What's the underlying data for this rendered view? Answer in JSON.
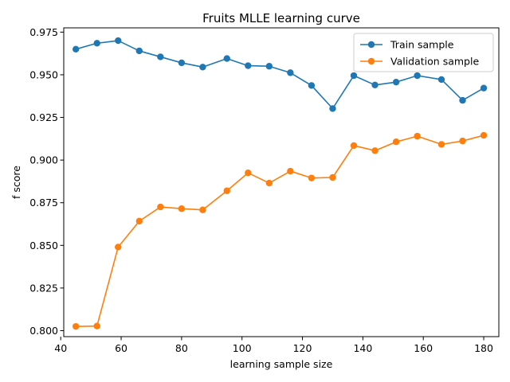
{
  "chart_data": {
    "type": "line",
    "title": "Fruits MLLE learning curve",
    "xlabel": "learning sample size",
    "ylabel": "f score",
    "xlim": [
      41,
      185
    ],
    "ylim": [
      0.7965,
      0.9775
    ],
    "xticks": [
      40,
      60,
      80,
      100,
      120,
      140,
      160,
      180
    ],
    "yticks": [
      0.8,
      0.825,
      0.85,
      0.875,
      0.9,
      0.925,
      0.95,
      0.975
    ],
    "ytick_labels": [
      "0.800",
      "0.825",
      "0.850",
      "0.875",
      "0.900",
      "0.925",
      "0.950",
      "0.975"
    ],
    "grid": false,
    "legend_position": "top-right",
    "x": [
      45,
      52,
      59,
      66,
      73,
      80,
      87,
      95,
      102,
      109,
      116,
      123,
      130,
      137,
      144,
      151,
      158,
      166,
      173,
      180
    ],
    "series": [
      {
        "name": "Train sample",
        "color": "#1f77b4",
        "values": [
          0.965,
          0.9685,
          0.97,
          0.964,
          0.9605,
          0.957,
          0.9545,
          0.9595,
          0.9553,
          0.955,
          0.9512,
          0.9437,
          0.9302,
          0.9495,
          0.944,
          0.9457,
          0.9495,
          0.9472,
          0.935,
          0.9422
        ]
      },
      {
        "name": "Validation sample",
        "color": "#ff7f0e",
        "values": [
          0.8025,
          0.8027,
          0.849,
          0.8642,
          0.8725,
          0.8715,
          0.8708,
          0.882,
          0.8925,
          0.8865,
          0.8935,
          0.8895,
          0.8898,
          0.9085,
          0.9055,
          0.9107,
          0.914,
          0.9092,
          0.9112,
          0.9145
        ]
      }
    ]
  }
}
